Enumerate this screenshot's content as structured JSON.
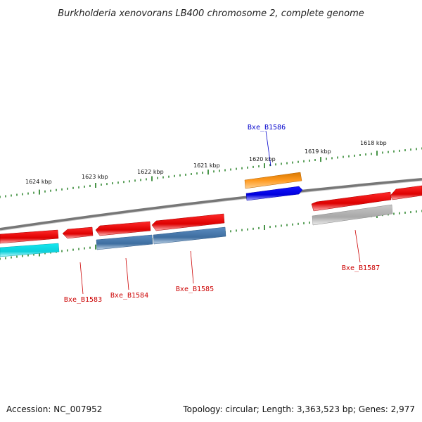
{
  "title": "Burkholderia xenovorans LB400 chromosome 2, complete genome",
  "footer": {
    "accession": "Accession: NC_007952",
    "topology": "Topology: circular; Length: 3,363,523 bp; Genes: 2,977"
  },
  "scale_labels": [
    "1624 kbp",
    "1623 kbp",
    "1622 kbp",
    "1621 kbp",
    "1620 kbp",
    "1619 kbp",
    "1618 kbp"
  ],
  "gene_labels": [
    {
      "name": "Bxe_B1586",
      "color": "#0000cc"
    },
    {
      "name": "Bxe_B1583",
      "color": "#cc0000"
    },
    {
      "name": "Bxe_B1584",
      "color": "#cc0000"
    },
    {
      "name": "Bxe_B1585",
      "color": "#cc0000"
    },
    {
      "name": "Bxe_B1587",
      "color": "#cc0000"
    }
  ],
  "colors": {
    "gene_red": "#e8141c",
    "gene_cyan": "#10e6ee",
    "gene_steelblue": "#4a7cb0",
    "gene_orange": "#f5921a",
    "gene_blue": "#0a0aee",
    "gene_grey": "#b4b4b4",
    "backbone": "#7a7a7a",
    "tick_green": "#1a7a1a"
  }
}
